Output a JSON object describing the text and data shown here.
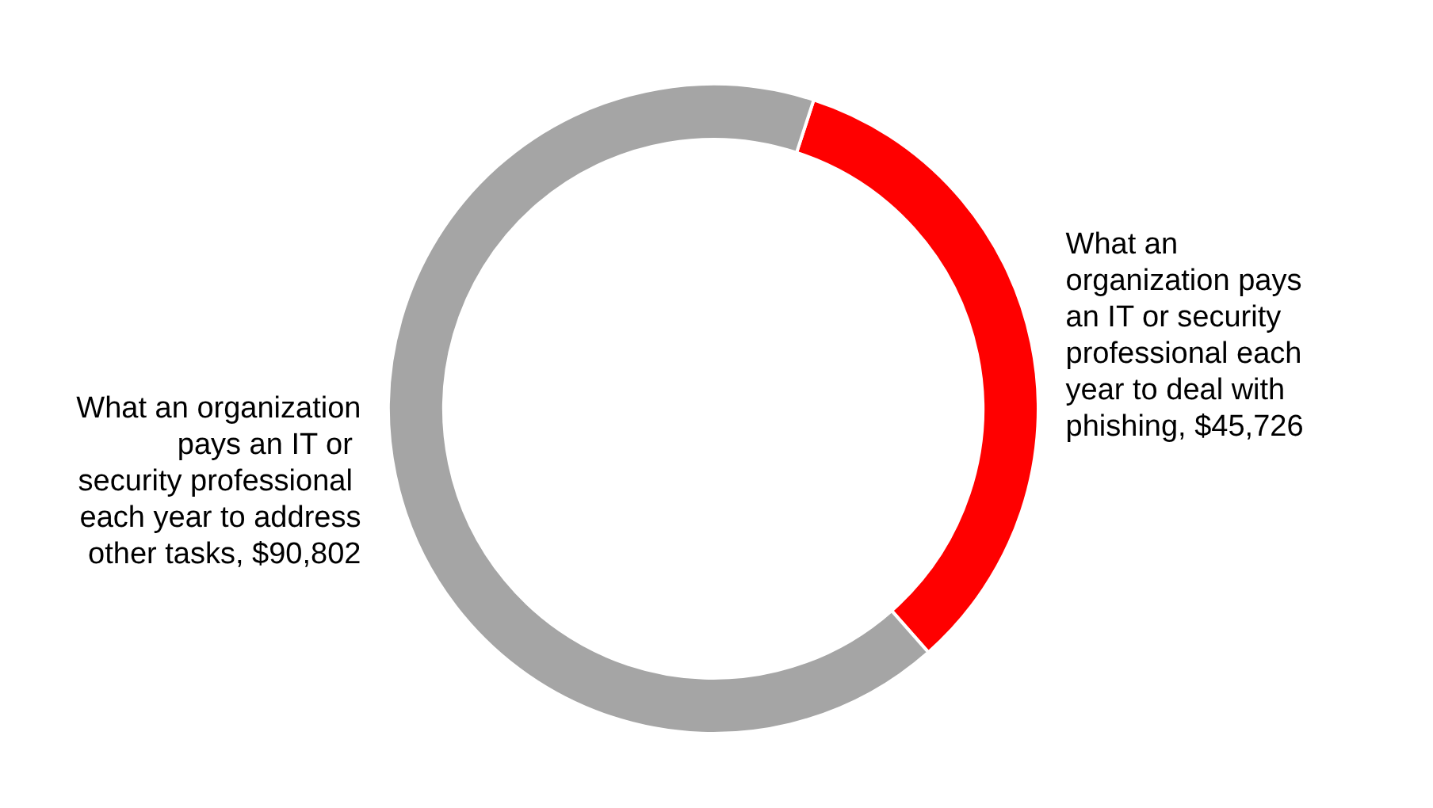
{
  "chart_data": {
    "type": "donut",
    "categories": [
      "What an organization pays an IT or security professional each year to deal with phishing",
      "What an organization pays an IT or security professional each year to address other tasks"
    ],
    "values": [
      45726,
      90802
    ],
    "value_labels": [
      "$45,726",
      "$90,802"
    ],
    "colors": [
      "#ff0000",
      "#a5a5a5"
    ],
    "legend": false
  }
}
